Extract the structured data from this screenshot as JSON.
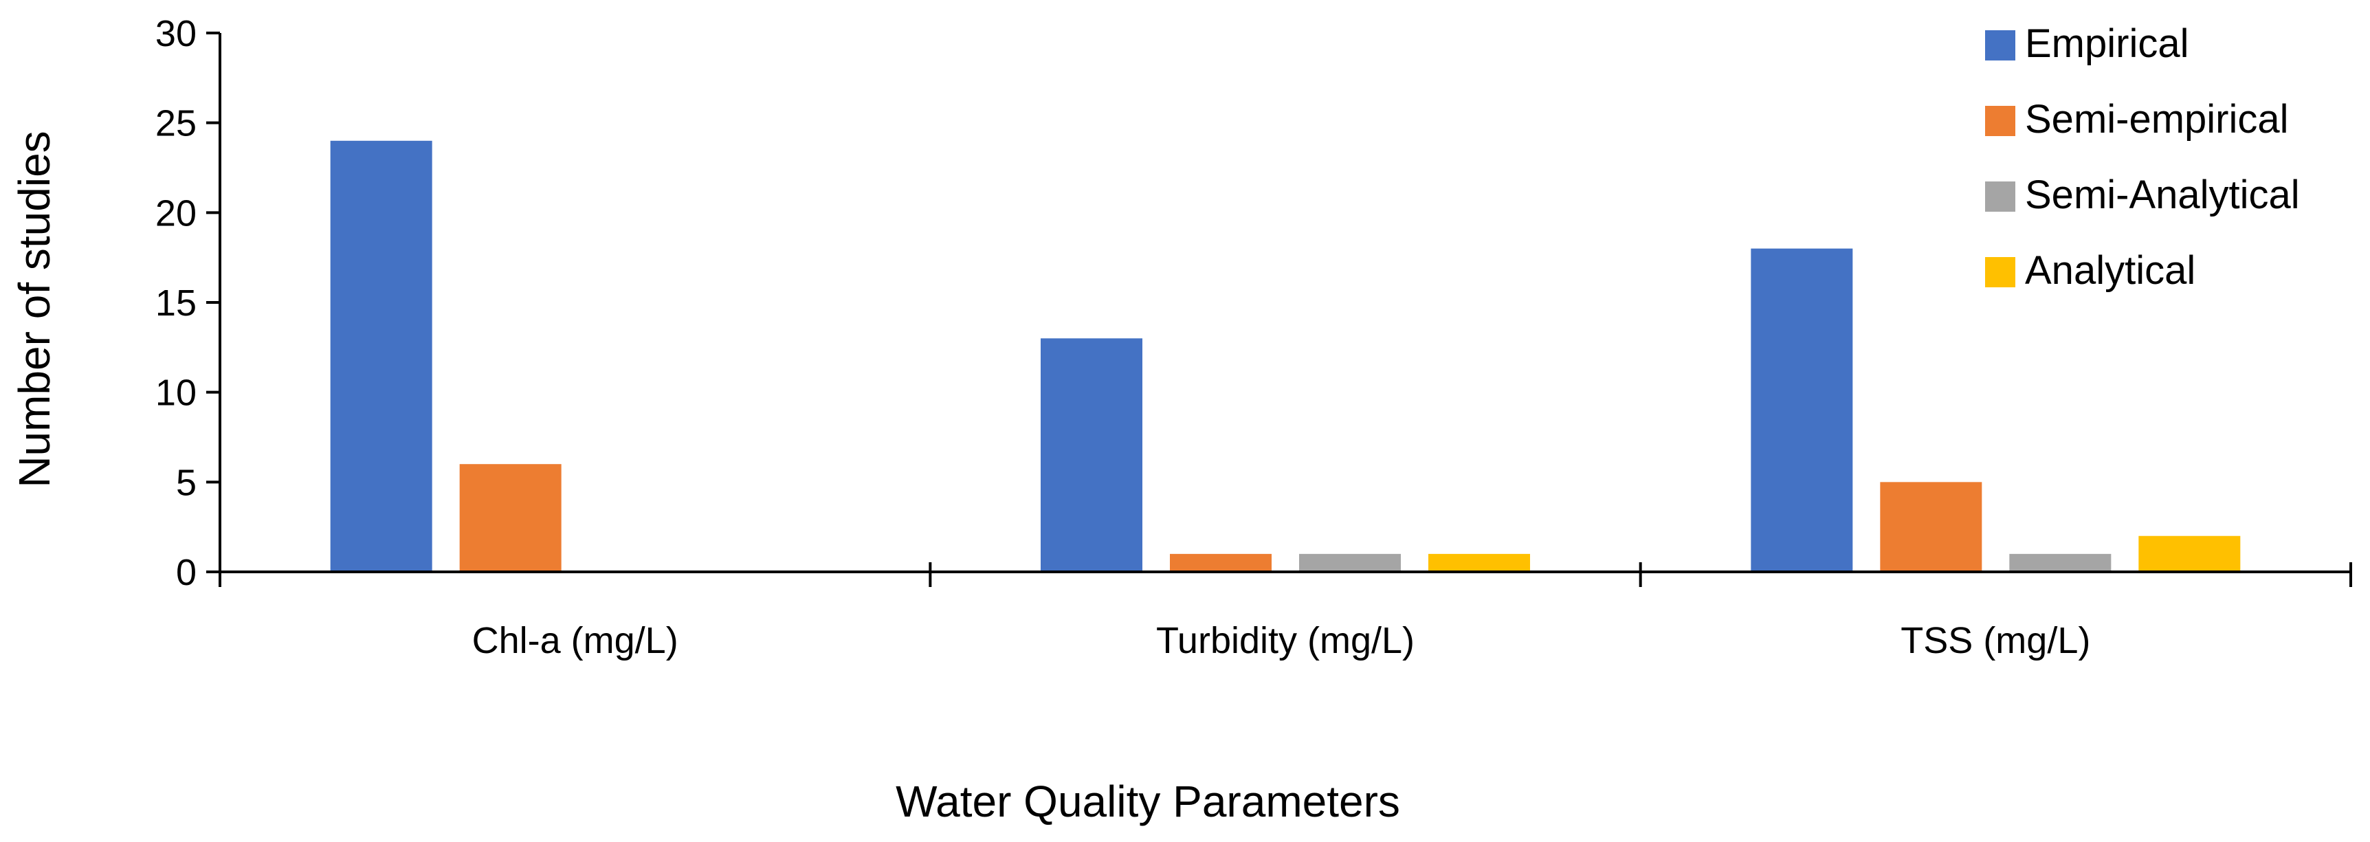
{
  "chart_data": {
    "type": "bar",
    "title": "",
    "xlabel": "Water Quality Parameters",
    "ylabel": "Number of studies",
    "categories": [
      "Chl-a (mg/L)",
      "Turbidity (mg/L)",
      "TSS (mg/L)"
    ],
    "series": [
      {
        "name": "Empirical",
        "color": "#4472C4",
        "values": [
          24,
          13,
          18
        ]
      },
      {
        "name": "Semi-empirical",
        "color": "#ED7D31",
        "values": [
          6,
          1,
          5
        ]
      },
      {
        "name": "Semi-Analytical",
        "color": "#A5A5A5",
        "values": [
          0,
          1,
          1
        ]
      },
      {
        "name": "Analytical",
        "color": "#FFC000",
        "values": [
          0,
          1,
          2
        ]
      }
    ],
    "ylim": [
      0,
      30
    ],
    "yticks": [
      0,
      5,
      10,
      15,
      20,
      25,
      30
    ],
    "grid": false,
    "legend_position": "top-right"
  }
}
